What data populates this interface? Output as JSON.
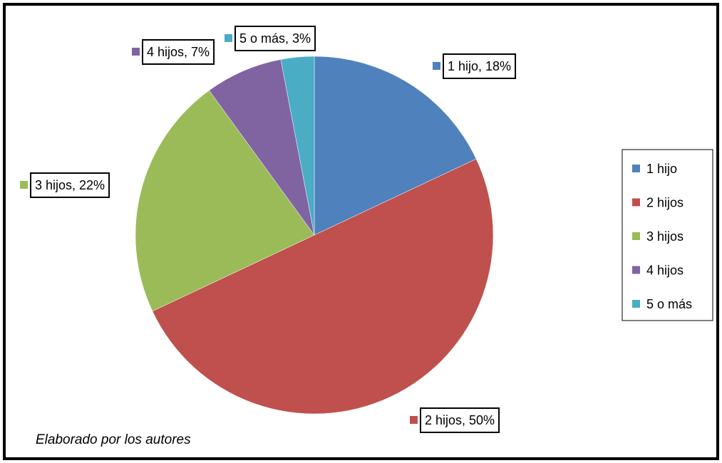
{
  "chart_data": {
    "type": "pie",
    "categories": [
      "1 hijo",
      "2 hijos",
      "3 hijos",
      "4 hijos",
      "5 o más"
    ],
    "values": [
      18,
      50,
      22,
      7,
      3
    ],
    "value_labels": [
      "1 hijo, 18%",
      "2 hijos, 50%",
      "3 hijos, 22%",
      "4 hijos, 7%",
      "5 o más, 3%"
    ],
    "colors": [
      "#4f81bd",
      "#c0504d",
      "#9bbb59",
      "#8064a2",
      "#4bacc6"
    ],
    "legend": "right",
    "note": "Elaborado por los autores"
  }
}
